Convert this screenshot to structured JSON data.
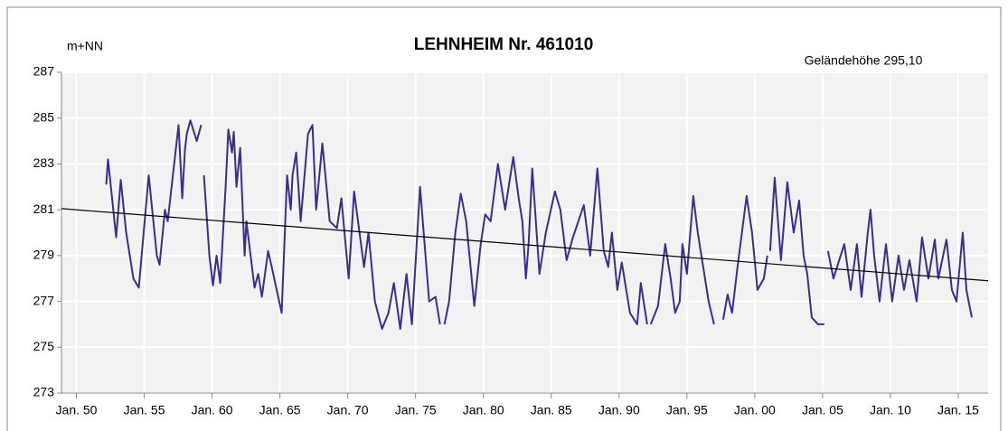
{
  "chart_data": {
    "type": "line",
    "title": "LEHNHEIM  Nr. 461010",
    "y_label": "m+NN",
    "annotation": "Geländehöhe 295,10",
    "annotation_color": "#339933",
    "background": "#f2f2f2",
    "grid": true,
    "xlim": [
      1948.9,
      2017.2
    ],
    "xticks": [
      {
        "value": 1950,
        "label": "Jan. 50"
      },
      {
        "value": 1955,
        "label": "Jan. 55"
      },
      {
        "value": 1960,
        "label": "Jan. 60"
      },
      {
        "value": 1965,
        "label": "Jan. 65"
      },
      {
        "value": 1970,
        "label": "Jan. 70"
      },
      {
        "value": 1975,
        "label": "Jan. 75"
      },
      {
        "value": 1980,
        "label": "Jan. 80"
      },
      {
        "value": 1985,
        "label": "Jan. 85"
      },
      {
        "value": 1990,
        "label": "Jan. 90"
      },
      {
        "value": 1995,
        "label": "Jan. 95"
      },
      {
        "value": 2000,
        "label": "Jan. 00"
      },
      {
        "value": 2005,
        "label": "Jan. 05"
      },
      {
        "value": 2010,
        "label": "Jan. 10"
      },
      {
        "value": 2015,
        "label": "Jan. 15"
      }
    ],
    "ylim": [
      273,
      287
    ],
    "yticks": [
      273,
      275,
      277,
      279,
      281,
      283,
      285,
      287
    ],
    "series": [
      {
        "color": "#3d2b8e",
        "x": [
          1952.2,
          1952.33,
          1952.93,
          1953.27,
          1953.67,
          1954.2,
          1954.6,
          1955.33,
          1955.93,
          1956.13,
          1956.53,
          1956.73,
          1957.53,
          1957.8,
          1958.0,
          1958.13,
          1958.4,
          1958.87,
          1959.2,
          1959.3,
          1959.4,
          1959.8,
          1960.07,
          1960.33,
          1960.6,
          1961.0,
          1961.2,
          1961.47,
          1961.6,
          1961.8,
          1962.07,
          1962.4,
          1962.53,
          1963.13,
          1963.4,
          1963.67,
          1964.13,
          1964.4,
          1965.13,
          1965.53,
          1965.8,
          1965.93,
          1966.2,
          1966.53,
          1967.07,
          1967.4,
          1967.67,
          1968.13,
          1968.67,
          1969.2,
          1969.53,
          1970.07,
          1970.47,
          1971.2,
          1971.53,
          1972.0,
          1972.53,
          1973.0,
          1973.4,
          1973.87,
          1974.33,
          1974.73,
          1975.33,
          1976.0,
          1976.47,
          1976.8,
          1976.95,
          1977.13,
          1977.47,
          1977.93,
          1978.33,
          1978.73,
          1979.33,
          1979.8,
          1980.13,
          1980.53,
          1981.07,
          1981.6,
          1982.2,
          1982.6,
          1982.87,
          1983.13,
          1983.33,
          1983.6,
          1984.13,
          1984.6,
          1985.27,
          1985.67,
          1986.13,
          1986.6,
          1987.4,
          1987.87,
          1988.4,
          1988.87,
          1989.2,
          1989.47,
          1989.87,
          1990.2,
          1990.8,
          1991.33,
          1991.6,
          1992.07,
          1992.15,
          1992.33,
          1992.87,
          1993.4,
          1993.8,
          1994.13,
          1994.47,
          1994.67,
          1995.0,
          1995.47,
          1995.8,
          1996.2,
          1996.6,
          1997.0,
          1997.3,
          1997.67,
          1998.0,
          1998.33,
          1998.73,
          1999.4,
          1999.8,
          2000.2,
          2000.67,
          2000.93,
          2001.0,
          2001.13,
          2001.47,
          2001.93,
          2002.4,
          2002.87,
          2003.27,
          2003.6,
          2003.87,
          2004.2,
          2004.67,
          2005.13,
          2005.2,
          2005.4,
          2005.8,
          2006.6,
          2007.07,
          2007.53,
          2007.87,
          2008.33,
          2008.53,
          2008.8,
          2009.2,
          2009.67,
          2010.13,
          2010.6,
          2011.0,
          2011.4,
          2011.93,
          2012.33,
          2012.8,
          2013.27,
          2013.53,
          2014.13,
          2014.53,
          2014.87,
          2015.33,
          2015.6,
          2016.0
        ],
        "values": [
          282.1,
          283.2,
          279.8,
          282.3,
          280.0,
          278.0,
          277.6,
          282.5,
          279.0,
          278.6,
          281.0,
          280.5,
          284.7,
          281.5,
          283.6,
          284.3,
          284.9,
          284.0,
          284.7,
          null,
          282.5,
          279.0,
          277.7,
          279.0,
          277.8,
          282.0,
          284.5,
          283.5,
          284.4,
          282.0,
          283.7,
          279.0,
          280.5,
          277.6,
          278.2,
          277.2,
          279.2,
          278.5,
          276.5,
          282.5,
          281.0,
          282.5,
          283.5,
          280.5,
          284.3,
          284.7,
          281.0,
          283.9,
          280.5,
          280.2,
          281.5,
          278.0,
          281.8,
          278.5,
          280.0,
          277.0,
          275.8,
          276.5,
          277.8,
          275.8,
          278.2,
          276.0,
          282.0,
          277.0,
          277.2,
          276.0,
          null,
          276.0,
          277.0,
          280.0,
          281.7,
          280.5,
          276.8,
          279.5,
          280.8,
          280.5,
          283.0,
          281.0,
          283.3,
          281.5,
          280.5,
          278.0,
          279.5,
          282.8,
          278.2,
          280.0,
          281.8,
          281.0,
          278.8,
          279.8,
          281.2,
          279.0,
          282.8,
          279.2,
          278.5,
          280.0,
          277.5,
          278.7,
          276.5,
          276.0,
          277.8,
          276.0,
          null,
          276.0,
          276.8,
          279.5,
          278.0,
          276.5,
          277.0,
          279.5,
          278.2,
          281.6,
          280.0,
          278.5,
          277.0,
          276.0,
          null,
          276.2,
          277.3,
          276.5,
          278.5,
          281.6,
          280.0,
          277.5,
          278.0,
          279.0,
          null,
          279.2,
          282.4,
          278.8,
          282.2,
          280.0,
          281.4,
          279.0,
          278.2,
          276.3,
          276.0,
          276.0,
          null,
          279.2,
          278.0,
          279.5,
          277.5,
          279.5,
          277.2,
          280.0,
          281.0,
          279.0,
          277.0,
          279.5,
          277.0,
          279.0,
          277.5,
          278.8,
          277.0,
          279.8,
          278.0,
          279.7,
          278.0,
          279.7,
          277.5,
          277.0,
          280.0,
          277.5,
          276.3
        ]
      },
      {
        "color": "#000000",
        "x": [
          1948.9,
          2017.2
        ],
        "values": [
          281.05,
          277.9
        ]
      }
    ]
  }
}
